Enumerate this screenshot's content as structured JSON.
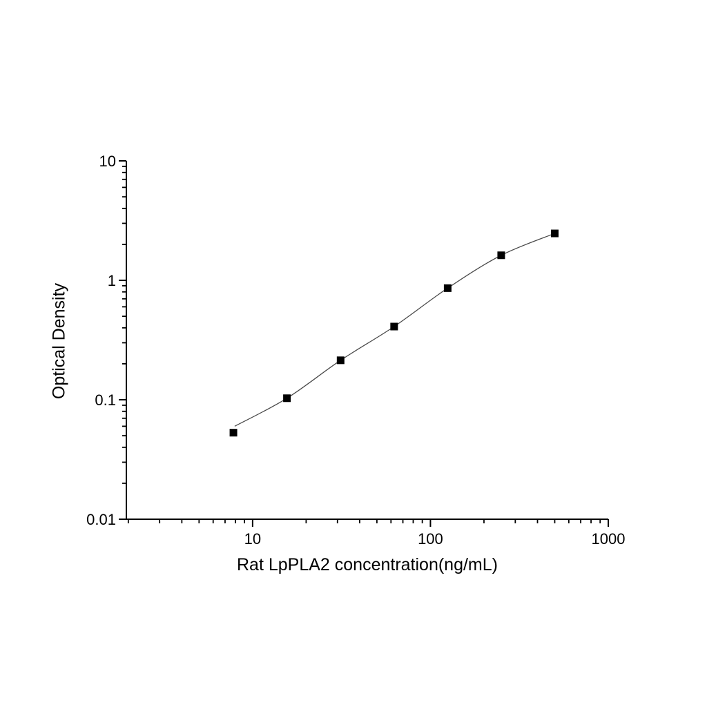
{
  "page": {
    "background": "#ffffff"
  },
  "chart_data": {
    "type": "scatter",
    "title": "",
    "xlabel": "Rat LpPLA2 concentration(ng/mL)",
    "ylabel": "Optical Density",
    "x_scale": "log",
    "y_scale": "log",
    "xlim": [
      1.95,
      1000
    ],
    "ylim": [
      0.01,
      10
    ],
    "x_major_ticks": [
      10,
      100,
      1000
    ],
    "y_major_ticks": [
      0.01,
      0.1,
      1,
      10
    ],
    "grid": false,
    "legend": false,
    "series": [
      {
        "marker": "square",
        "marker_color": "#000000",
        "line_color": "#4a4a4a",
        "x": [
          7.8,
          15.6,
          31.25,
          62.5,
          125,
          250,
          500
        ],
        "y": [
          0.053,
          0.103,
          0.214,
          0.41,
          0.86,
          1.62,
          2.47
        ]
      }
    ],
    "fit_curve_points": {
      "x": [
        7.93,
        15.6,
        31.25,
        62.5,
        125,
        250,
        500
      ],
      "y": [
        0.06,
        0.103,
        0.214,
        0.41,
        0.86,
        1.62,
        2.47
      ]
    },
    "colors": {
      "axis": "#000000",
      "text": "#000000",
      "background": "#ffffff"
    }
  }
}
